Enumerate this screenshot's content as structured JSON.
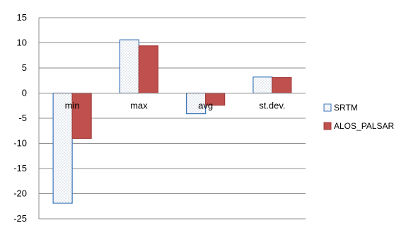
{
  "chart_data": {
    "type": "bar",
    "title": "",
    "xlabel": "",
    "ylabel": "",
    "categories": [
      "min",
      "max",
      "avg",
      "st.dev."
    ],
    "series": [
      {
        "name": "SRTM",
        "values": [
          -21.9,
          10.6,
          -4.1,
          3.2
        ],
        "fill": "dotted",
        "stroke": "#3a73b8"
      },
      {
        "name": "ALOS_PALSAR",
        "values": [
          -9.0,
          9.4,
          -2.4,
          3.1
        ],
        "fill": "#c0504d",
        "stroke": "#a33c39"
      }
    ],
    "ylim": [
      -25,
      15
    ],
    "yticks": [
      -25,
      -20,
      -15,
      -10,
      -5,
      0,
      5,
      10,
      15
    ],
    "grid": true,
    "legend_position": "right"
  }
}
